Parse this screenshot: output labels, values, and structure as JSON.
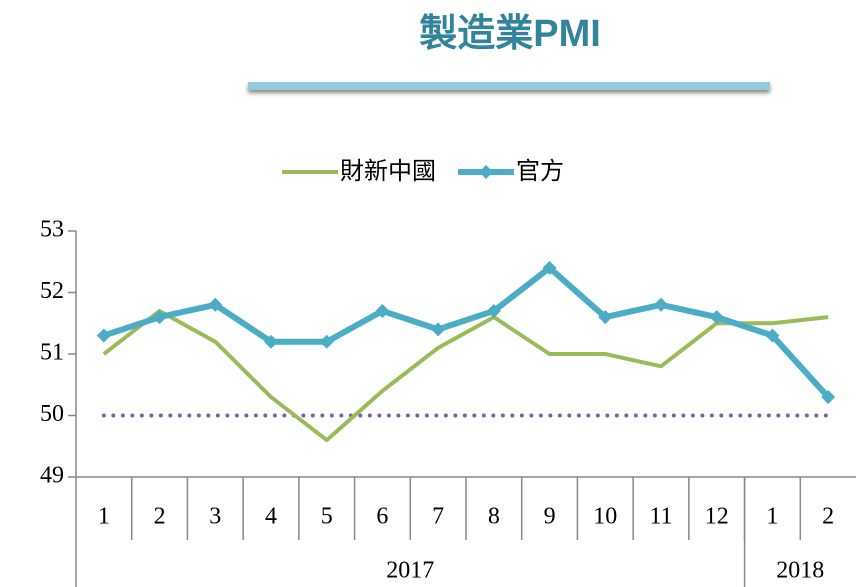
{
  "chart_data": {
    "type": "line",
    "title": "製造業PMI",
    "categories": [
      "1",
      "2",
      "3",
      "4",
      "5",
      "6",
      "7",
      "8",
      "9",
      "10",
      "11",
      "12",
      "1",
      "2"
    ],
    "groups": [
      {
        "label": "2017",
        "span": 12
      },
      {
        "label": "2018",
        "span": 2
      }
    ],
    "series": [
      {
        "name": "財新中國",
        "color": "#9bbb59",
        "marker": false,
        "values": [
          51.0,
          51.7,
          51.2,
          50.3,
          49.6,
          50.4,
          51.1,
          51.6,
          51.0,
          51.0,
          50.8,
          51.5,
          51.5,
          51.6
        ]
      },
      {
        "name": "官方",
        "color": "#4bacc6",
        "marker": true,
        "values": [
          51.3,
          51.6,
          51.8,
          51.2,
          51.2,
          51.7,
          51.4,
          51.7,
          52.4,
          51.6,
          51.8,
          51.6,
          51.3,
          50.3
        ]
      }
    ],
    "reference_line": {
      "value": 50,
      "color": "#7f5fa8"
    },
    "ylim": [
      49,
      53
    ],
    "yticks": [
      49,
      50,
      51,
      52,
      53
    ],
    "legend": "top"
  }
}
